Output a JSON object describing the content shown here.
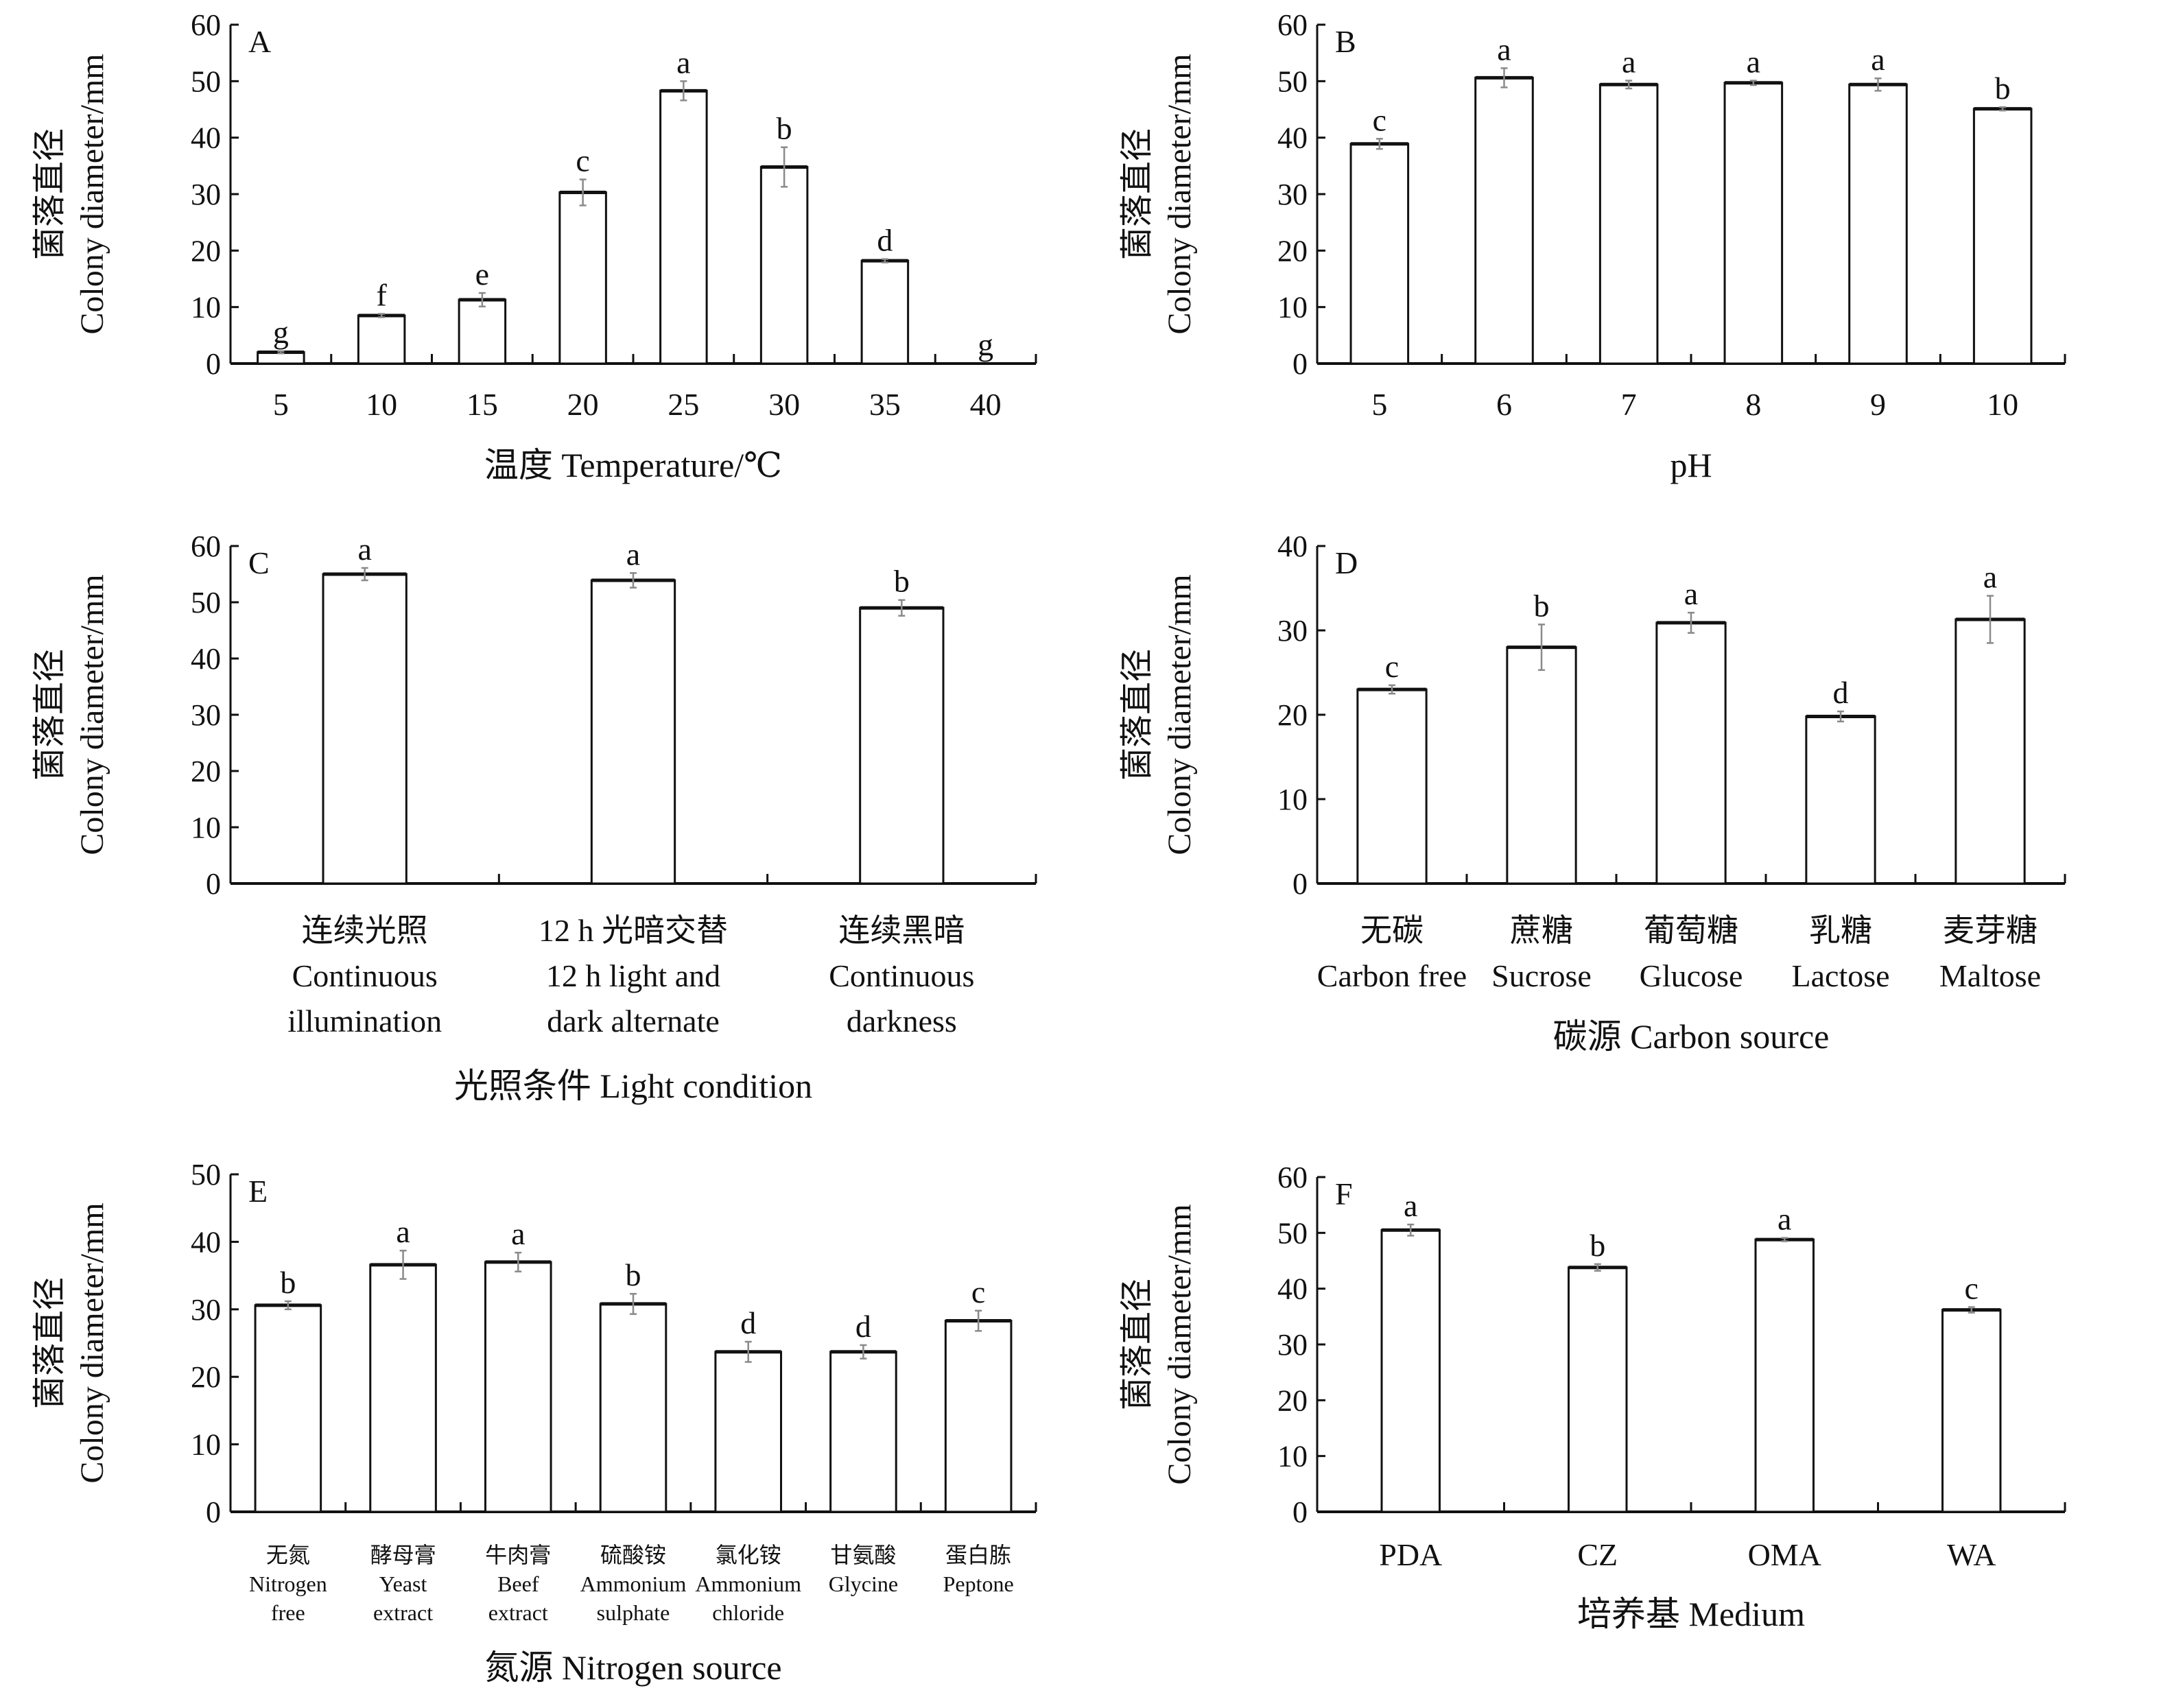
{
  "chart_data": [
    {
      "type": "bar",
      "panel": "A",
      "title": "",
      "xlabel": "温度 Temperature/℃",
      "ylabel_cn": "菌落直径",
      "ylabel_en": "Colony diameter/mm",
      "ylim": [
        0,
        60
      ],
      "yticks": [
        0,
        10,
        20,
        30,
        40,
        50,
        60
      ],
      "categories": [
        [
          "5"
        ],
        [
          "10"
        ],
        [
          "15"
        ],
        [
          "20"
        ],
        [
          "25"
        ],
        [
          "30"
        ],
        [
          "35"
        ],
        [
          "40"
        ]
      ],
      "values": [
        2,
        8.5,
        11.3,
        30.3,
        48.3,
        34.8,
        18.2,
        0
      ],
      "errors": [
        0.2,
        0.3,
        1.2,
        2.3,
        1.7,
        3.5,
        0.3,
        0
      ],
      "letters": [
        "g",
        "f",
        "e",
        "c",
        "a",
        "b",
        "d",
        "g"
      ],
      "grid": false
    },
    {
      "type": "bar",
      "panel": "B",
      "title": "",
      "xlabel": "pH",
      "ylabel_cn": "菌落直径",
      "ylabel_en": "Colony diameter/mm",
      "ylim": [
        0,
        60
      ],
      "yticks": [
        0,
        10,
        20,
        30,
        40,
        50,
        60
      ],
      "categories": [
        [
          "5"
        ],
        [
          "6"
        ],
        [
          "7"
        ],
        [
          "8"
        ],
        [
          "9"
        ],
        [
          "10"
        ]
      ],
      "values": [
        38.9,
        50.6,
        49.4,
        49.7,
        49.4,
        45.1
      ],
      "errors": [
        0.9,
        1.7,
        0.7,
        0.4,
        1.1,
        0.3
      ],
      "letters": [
        "c",
        "a",
        "a",
        "a",
        "a",
        "b"
      ],
      "grid": false
    },
    {
      "type": "bar",
      "panel": "C",
      "title": "",
      "xlabel": "光照条件 Light condition",
      "ylabel_cn": "菌落直径",
      "ylabel_en": "Colony diameter/mm",
      "ylim": [
        0,
        60
      ],
      "yticks": [
        0,
        10,
        20,
        30,
        40,
        50,
        60
      ],
      "categories": [
        [
          "连续光照",
          "Continuous",
          "illumination"
        ],
        [
          "12 h 光暗交替",
          "12 h light and",
          "dark alternate"
        ],
        [
          "连续黑暗",
          "Continuous",
          "darkness"
        ]
      ],
      "values": [
        55,
        53.9,
        49
      ],
      "errors": [
        1.1,
        1.3,
        1.4
      ],
      "letters": [
        "a",
        "a",
        "b"
      ],
      "grid": false
    },
    {
      "type": "bar",
      "panel": "D",
      "title": "",
      "xlabel": "碳源 Carbon source",
      "ylabel_cn": "菌落直径",
      "ylabel_en": "Colony diameter/mm",
      "ylim": [
        0,
        40
      ],
      "yticks": [
        0,
        10,
        20,
        30,
        40
      ],
      "categories": [
        [
          "无碳",
          "Carbon free"
        ],
        [
          "蔗糖",
          "Sucrose"
        ],
        [
          "葡萄糖",
          "Glucose"
        ],
        [
          "乳糖",
          "Lactose"
        ],
        [
          "麦芽糖",
          "Maltose"
        ]
      ],
      "values": [
        23,
        28,
        30.9,
        19.8,
        31.3
      ],
      "errors": [
        0.5,
        2.7,
        1.2,
        0.6,
        2.8
      ],
      "letters": [
        "c",
        "b",
        "a",
        "d",
        "a"
      ],
      "grid": false
    },
    {
      "type": "bar",
      "panel": "E",
      "title": "",
      "xlabel": "氮源 Nitrogen source",
      "ylabel_cn": "菌落直径",
      "ylabel_en": "Colony diameter/mm",
      "ylim": [
        0,
        50
      ],
      "yticks": [
        0,
        10,
        20,
        30,
        40,
        50
      ],
      "categories": [
        [
          "无氮",
          "Nitrogen",
          "free"
        ],
        [
          "酵母膏",
          "Yeast",
          "extract"
        ],
        [
          "牛肉膏",
          "Beef",
          "extract"
        ],
        [
          "硫酸铵",
          "Ammonium",
          "sulphate"
        ],
        [
          "氯化铵",
          "Ammonium",
          "chloride"
        ],
        [
          "甘氨酸",
          "Glycine"
        ],
        [
          "蛋白胨",
          "Peptone"
        ]
      ],
      "values": [
        30.6,
        36.6,
        37,
        30.8,
        23.7,
        23.7,
        28.3
      ],
      "errors": [
        0.6,
        2.1,
        1.4,
        1.5,
        1.5,
        1.0,
        1.5
      ],
      "letters": [
        "b",
        "a",
        "a",
        "b",
        "d",
        "d",
        "c"
      ],
      "grid": false
    },
    {
      "type": "bar",
      "panel": "F",
      "title": "",
      "xlabel": "培养基 Medium",
      "ylabel_cn": "菌落直径",
      "ylabel_en": "Colony diameter/mm",
      "ylim": [
        0,
        60
      ],
      "yticks": [
        0,
        10,
        20,
        30,
        40,
        50,
        60
      ],
      "categories": [
        [
          "PDA"
        ],
        [
          "CZ"
        ],
        [
          "OMA"
        ],
        [
          "WA"
        ]
      ],
      "values": [
        50.5,
        43.8,
        48.8,
        36.2
      ],
      "errors": [
        1.0,
        0.6,
        0.3,
        0.5
      ],
      "letters": [
        "a",
        "b",
        "a",
        "c"
      ],
      "grid": false
    }
  ],
  "colors": {
    "axis": "#111111",
    "bar_fill": "#ffffff",
    "bar_stroke": "#111111",
    "error_bar": "#8a8a8a"
  }
}
